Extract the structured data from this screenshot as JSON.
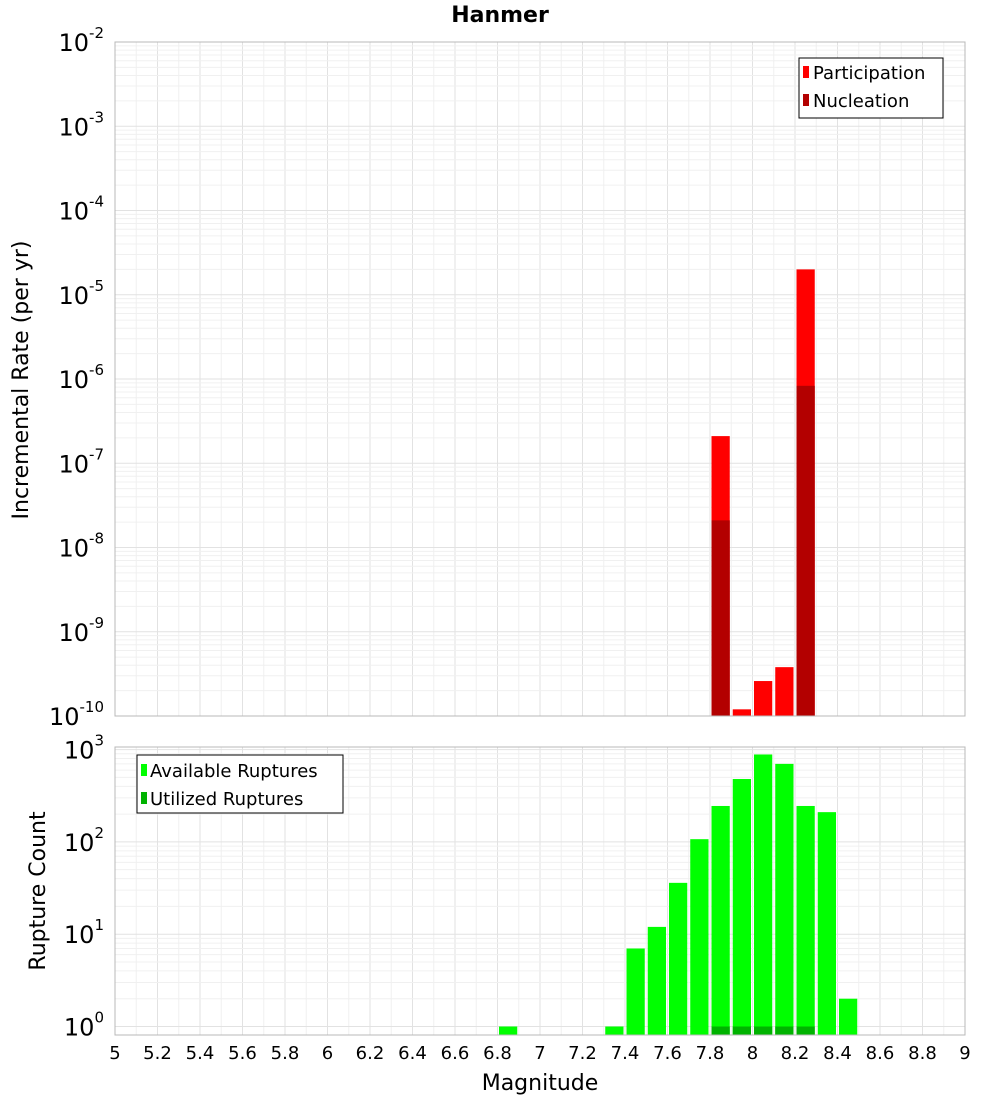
{
  "chart_data": [
    {
      "type": "bar",
      "title": "Hanmer",
      "xlabel": "",
      "ylabel": "Incremental Rate (per yr)",
      "yscale": "log",
      "ylim_exponents": [
        -10,
        -2
      ],
      "xlim": [
        5,
        9
      ],
      "bar_width": 0.1,
      "grid": true,
      "legend_position": "top-right",
      "stacked": "overlaid",
      "series": [
        {
          "name": "Participation",
          "color": "#ff0000",
          "points": [
            {
              "x": 7.85,
              "y": 2.1e-07
            },
            {
              "x": 7.95,
              "y": 1.2e-10
            },
            {
              "x": 8.05,
              "y": 2.6e-10
            },
            {
              "x": 8.15,
              "y": 3.8e-10
            },
            {
              "x": 8.25,
              "y": 2e-05
            }
          ]
        },
        {
          "name": "Nucleation",
          "color": "#b30000",
          "points": [
            {
              "x": 7.85,
              "y": 2.1e-08
            },
            {
              "x": 8.25,
              "y": 8.3e-07
            }
          ]
        }
      ]
    },
    {
      "type": "bar",
      "title": "",
      "xlabel": "Magnitude",
      "ylabel": "Rupture Count",
      "yscale": "log",
      "ylim_exponents": [
        0,
        3
      ],
      "xlim": [
        5,
        9
      ],
      "x_ticks": [
        "5",
        "5.2",
        "5.4",
        "5.6",
        "5.8",
        "6",
        "6.2",
        "6.4",
        "6.6",
        "6.8",
        "7",
        "7.2",
        "7.4",
        "7.6",
        "7.8",
        "8",
        "8.2",
        "8.4",
        "8.6",
        "8.8",
        "9"
      ],
      "bar_width": 0.1,
      "grid": true,
      "legend_position": "top-left",
      "series": [
        {
          "name": "Available Ruptures",
          "color": "#00ff00",
          "points": [
            {
              "x": 6.85,
              "y": 1
            },
            {
              "x": 7.35,
              "y": 1
            },
            {
              "x": 7.45,
              "y": 7
            },
            {
              "x": 7.55,
              "y": 12
            },
            {
              "x": 7.65,
              "y": 36
            },
            {
              "x": 7.75,
              "y": 107
            },
            {
              "x": 7.85,
              "y": 245
            },
            {
              "x": 7.95,
              "y": 480
            },
            {
              "x": 8.05,
              "y": 885
            },
            {
              "x": 8.15,
              "y": 700
            },
            {
              "x": 8.25,
              "y": 245
            },
            {
              "x": 8.35,
              "y": 210
            },
            {
              "x": 8.45,
              "y": 2
            }
          ]
        },
        {
          "name": "Utilized Ruptures",
          "color": "#00b300",
          "points": [
            {
              "x": 7.85,
              "y": 1
            },
            {
              "x": 7.95,
              "y": 1
            },
            {
              "x": 8.05,
              "y": 1
            },
            {
              "x": 8.15,
              "y": 1
            },
            {
              "x": 8.25,
              "y": 1
            }
          ]
        }
      ]
    }
  ]
}
